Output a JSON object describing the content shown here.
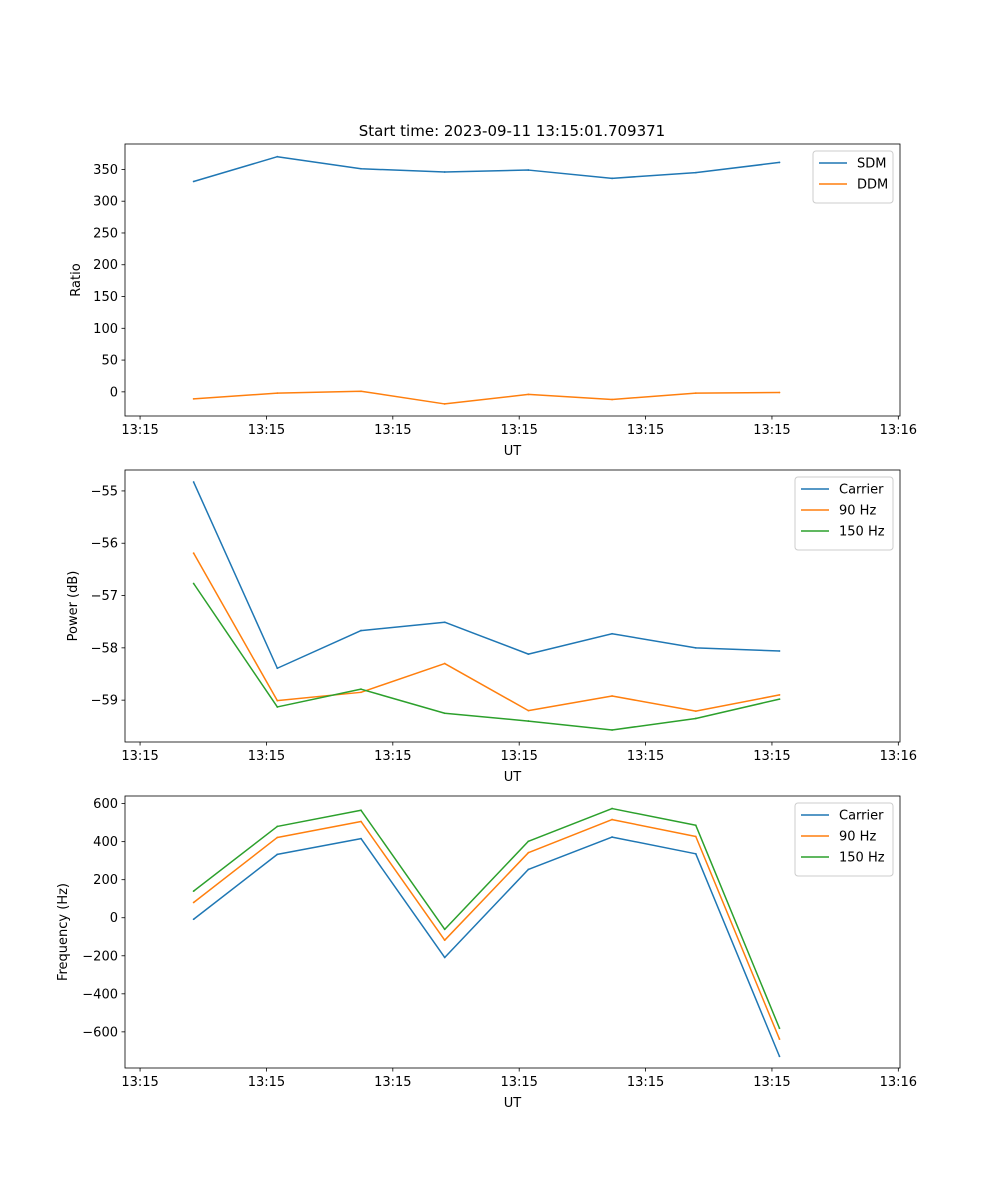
{
  "figure_title": "Start time: 2023-09-11 13:15:01.709371",
  "colors": {
    "blue": "#1f77b4",
    "orange": "#ff7f0e",
    "green": "#2ca02c"
  },
  "chart_data": [
    {
      "type": "line",
      "title": "Start time: 2023-09-11 13:15:01.709371",
      "xlabel": "UT",
      "ylabel": "Ratio",
      "x": [
        1,
        2,
        3,
        4,
        5,
        6,
        7,
        8
      ],
      "xlim": [
        0.18,
        9.44
      ],
      "xticks": [
        0.36,
        1.87,
        3.38,
        4.89,
        6.4,
        7.91,
        9.42
      ],
      "xtick_labels": [
        "13:15",
        "13:15",
        "13:15",
        "13:15",
        "13:15",
        "13:15",
        "13:16"
      ],
      "ylim": [
        -38,
        390
      ],
      "yticks": [
        0,
        50,
        100,
        150,
        200,
        250,
        300,
        350
      ],
      "ytick_labels": [
        "0",
        "50",
        "100",
        "150",
        "200",
        "250",
        "300",
        "350"
      ],
      "legend": "top-right",
      "series": [
        {
          "name": "SDM",
          "color": "#1f77b4",
          "values": [
            331,
            370,
            351,
            346,
            349,
            336,
            345,
            361
          ]
        },
        {
          "name": "DDM",
          "color": "#ff7f0e",
          "values": [
            -11,
            -2,
            1,
            -19,
            -4,
            -12,
            -2,
            -1
          ]
        }
      ]
    },
    {
      "type": "line",
      "title": "",
      "xlabel": "UT",
      "ylabel": "Power (dB)",
      "x": [
        1,
        2,
        3,
        4,
        5,
        6,
        7,
        8
      ],
      "xlim": [
        0.18,
        9.44
      ],
      "xticks": [
        0.36,
        1.87,
        3.38,
        4.89,
        6.4,
        7.91,
        9.42
      ],
      "xtick_labels": [
        "13:15",
        "13:15",
        "13:15",
        "13:15",
        "13:15",
        "13:15",
        "13:16"
      ],
      "ylim": [
        -59.8,
        -54.6
      ],
      "yticks": [
        -59,
        -58,
        -57,
        -56,
        -55
      ],
      "ytick_labels": [
        "−59",
        "−58",
        "−57",
        "−56",
        "−55"
      ],
      "legend": "top-right",
      "series": [
        {
          "name": "Carrier",
          "color": "#1f77b4",
          "values": [
            -54.83,
            -58.39,
            -57.67,
            -57.51,
            -58.12,
            -57.73,
            -58.0,
            -58.06
          ]
        },
        {
          "name": "90 Hz",
          "color": "#ff7f0e",
          "values": [
            -56.19,
            -59.01,
            -58.85,
            -58.3,
            -59.2,
            -58.92,
            -59.21,
            -58.9
          ]
        },
        {
          "name": "150 Hz",
          "color": "#2ca02c",
          "values": [
            -56.77,
            -59.13,
            -58.79,
            -59.25,
            -59.4,
            -59.57,
            -59.35,
            -58.98
          ]
        }
      ]
    },
    {
      "type": "line",
      "title": "",
      "xlabel": "UT",
      "ylabel": "Frequency (Hz)",
      "x": [
        1,
        2,
        3,
        4,
        5,
        6,
        7,
        8
      ],
      "xlim": [
        0.18,
        9.44
      ],
      "xticks": [
        0.36,
        1.87,
        3.38,
        4.89,
        6.4,
        7.91,
        9.42
      ],
      "xtick_labels": [
        "13:15",
        "13:15",
        "13:15",
        "13:15",
        "13:15",
        "13:15",
        "13:16"
      ],
      "ylim": [
        -790,
        640
      ],
      "yticks": [
        -600,
        -400,
        -200,
        0,
        200,
        400,
        600
      ],
      "ytick_labels": [
        "−600",
        "−400",
        "−200",
        "0",
        "200",
        "400",
        "600"
      ],
      "legend": "top-right",
      "series": [
        {
          "name": "Carrier",
          "color": "#1f77b4",
          "values": [
            -8,
            333,
            416,
            -209,
            254,
            424,
            336,
            -729
          ]
        },
        {
          "name": "90 Hz",
          "color": "#ff7f0e",
          "values": [
            80,
            422,
            506,
            -118,
            342,
            516,
            427,
            -638
          ]
        },
        {
          "name": "150 Hz",
          "color": "#2ca02c",
          "values": [
            140,
            480,
            565,
            -61,
            402,
            574,
            486,
            -581
          ]
        }
      ]
    }
  ]
}
